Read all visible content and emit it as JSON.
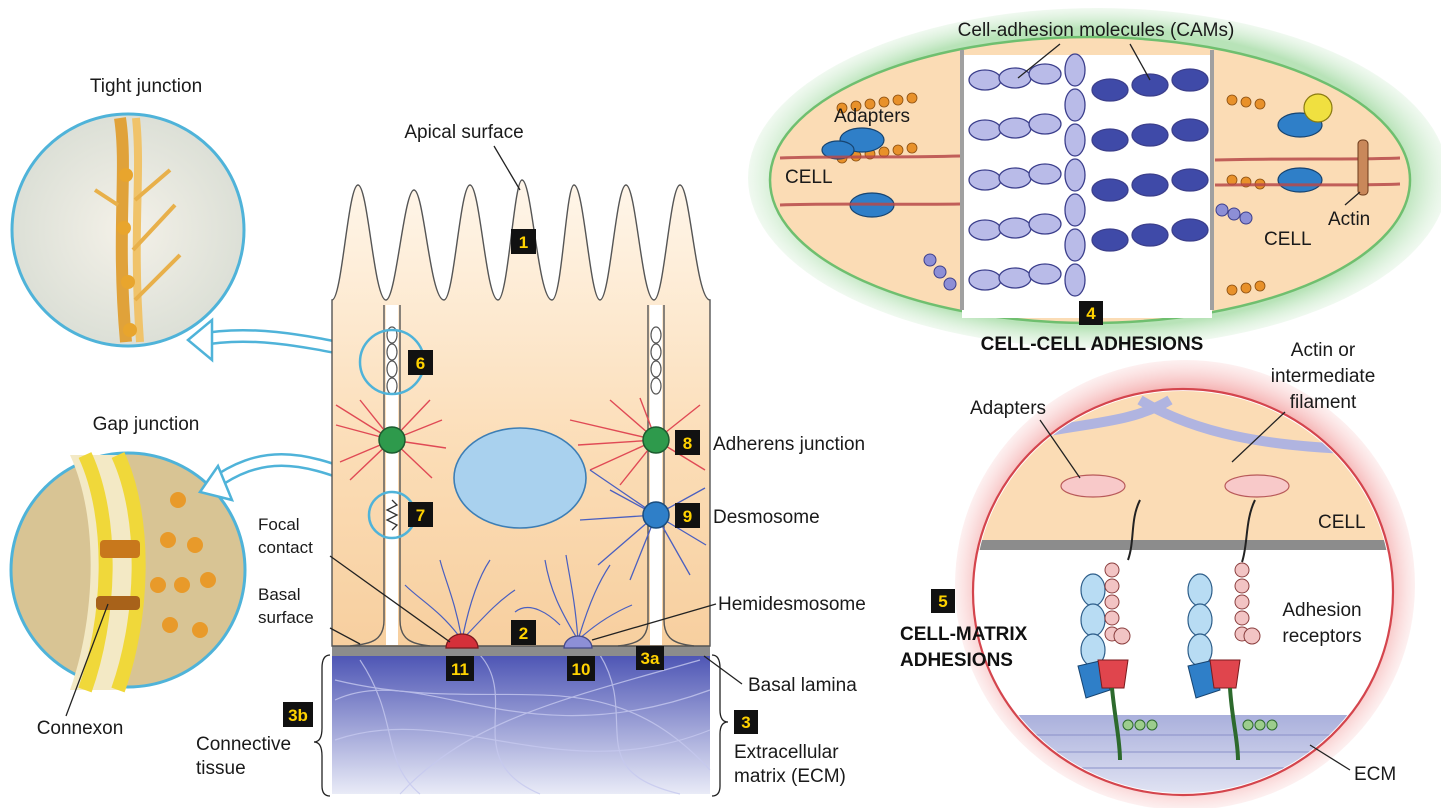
{
  "labels": {
    "tight_junction": "Tight junction",
    "gap_junction": "Gap junction",
    "connexon": "Connexon",
    "apical_surface": "Apical surface",
    "focal_contact_1": "Focal",
    "focal_contact_2": "contact",
    "basal_surface_1": "Basal",
    "basal_surface_2": "surface",
    "connective_tissue_1": "Connective",
    "connective_tissue_2": "tissue",
    "adherens_junction": "Adherens junction",
    "desmosome": "Desmosome",
    "hemidesmosome": "Hemidesmosome",
    "basal_lamina": "Basal lamina",
    "ecm_1": "Extracellular",
    "ecm_2": "matrix (ECM)",
    "cams": "Cell-adhesion molecules (CAMs)",
    "adapters_top": "Adapters",
    "cell_left": "CELL",
    "cell_right": "CELL",
    "actin": "Actin",
    "cell_cell_adhesions": "CELL-CELL ADHESIONS",
    "actin_or_1": "Actin or",
    "actin_or_2": "intermediate",
    "actin_or_3": "filament",
    "adapters_bottom": "Adapters",
    "cell_bottom": "CELL",
    "adhesion_receptors_1": "Adhesion",
    "adhesion_receptors_2": "receptors",
    "cell_matrix_1": "CELL-MATRIX",
    "cell_matrix_2": "ADHESIONS",
    "ecm_short": "ECM"
  },
  "badges": {
    "b1": "1",
    "b2": "2",
    "b3": "3",
    "b3a": "3a",
    "b3b": "3b",
    "b4": "4",
    "b5": "5",
    "b6": "6",
    "b7": "7",
    "b8": "8",
    "b9": "9",
    "b10": "10",
    "b11": "11"
  },
  "colors": {
    "cell_fill": "#fbdcb5",
    "nucleus": "#a9d1ee",
    "inset_outline": "#4fb3d9",
    "cell_cell_halo": "#8fd28f",
    "cell_matrix_halo": "#e2555c",
    "ecm": "#3e46a6",
    "basal_lamina": "#8c8c8c",
    "adherens": "#2e9a4c",
    "desmosome": "#2f7fc8",
    "focal_contact": "#d4303a",
    "hemidesmosome": "#8d8fd6",
    "badge_bg": "#111111",
    "badge_text": "#ffd200"
  }
}
